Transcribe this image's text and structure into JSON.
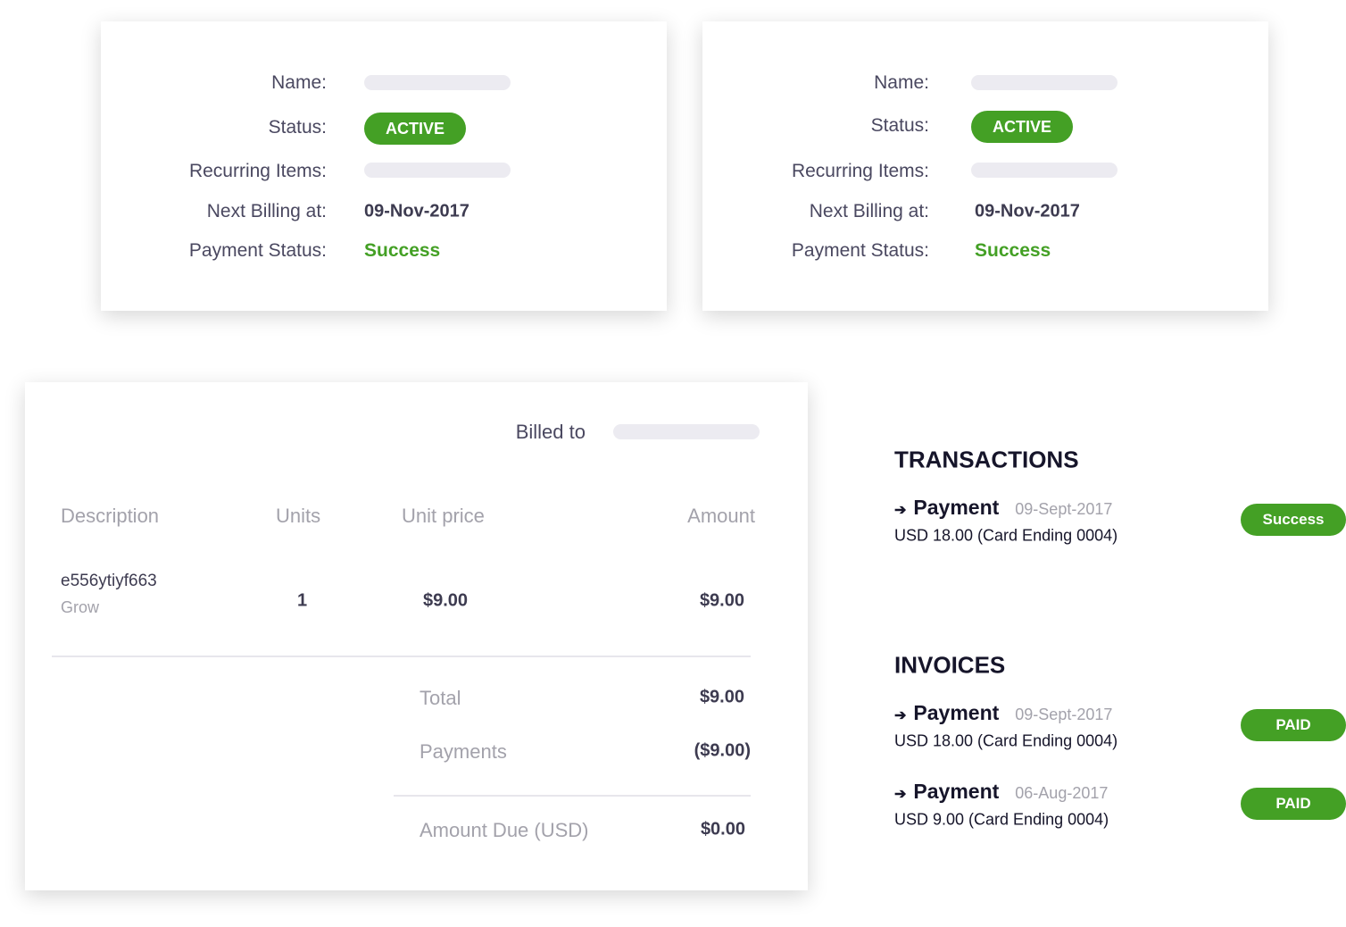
{
  "subscriptions": [
    {
      "name_label": "Name:",
      "status_label": "Status:",
      "status": "ACTIVE",
      "recurring_label": "Recurring Items:",
      "next_billing_label": "Next Billing at:",
      "next_billing": "09-Nov-2017",
      "payment_status_label": "Payment Status:",
      "payment_status": "Success"
    },
    {
      "name_label": "Name:",
      "status_label": "Status:",
      "status": "ACTIVE",
      "recurring_label": "Recurring Items:",
      "next_billing_label": "Next Billing at:",
      "next_billing": "09-Nov-2017",
      "payment_status_label": "Payment Status:",
      "payment_status": "Success"
    }
  ],
  "invoice": {
    "billed_to_label": "Billed to",
    "headers": {
      "description": "Description",
      "units": "Units",
      "unit_price": "Unit price",
      "amount": "Amount"
    },
    "items": [
      {
        "description": "e556ytiyf663",
        "plan": "Grow",
        "units": "1",
        "unit_price": "$9.00",
        "amount": "$9.00"
      }
    ],
    "total_label": "Total",
    "total": "$9.00",
    "payments_label": "Payments",
    "payments": "($9.00)",
    "amount_due_label": "Amount Due (USD)",
    "amount_due": "$0.00"
  },
  "transactions": {
    "title": "TRANSACTIONS",
    "items": [
      {
        "label": "Payment",
        "date": "09-Sept-2017",
        "detail": "USD 18.00 (Card Ending 0004)",
        "status": "Success"
      }
    ]
  },
  "invoices": {
    "title": "INVOICES",
    "items": [
      {
        "label": "Payment",
        "date": "09-Sept-2017",
        "detail": "USD 18.00 (Card Ending 0004)",
        "status": "PAID"
      },
      {
        "label": "Payment",
        "date": "06-Aug-2017",
        "detail": "USD 9.00 (Card Ending 0004)",
        "status": "PAID"
      }
    ]
  },
  "colors": {
    "accent": "#44a025",
    "placeholder": "#ecebf1",
    "text": "#4a4860"
  },
  "icons": {
    "row_arrow": "arrow-right-icon"
  }
}
